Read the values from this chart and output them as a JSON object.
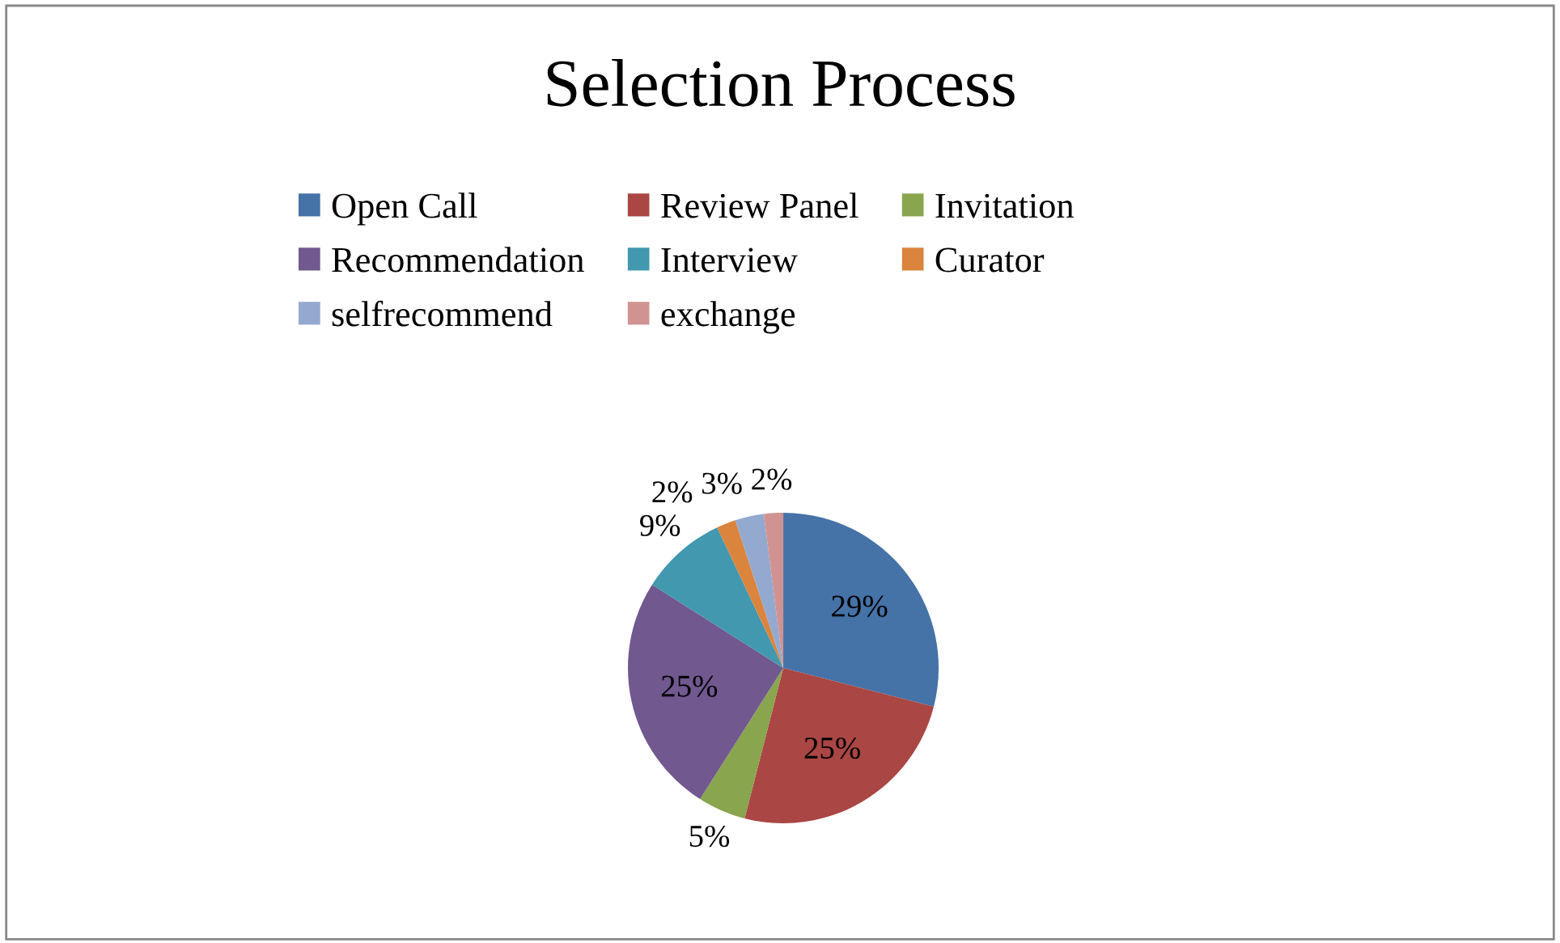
{
  "chart_data": {
    "type": "pie",
    "title": "Selection Process",
    "categories": [
      "Open Call",
      "Review Panel",
      "Invitation",
      "Recommendation",
      "Interview",
      "Curator",
      "selfrecommend",
      "exchange"
    ],
    "values": [
      29,
      25,
      5,
      25,
      9,
      2,
      3,
      2
    ],
    "colors": [
      "#4572a7",
      "#aa4643",
      "#89a54e",
      "#71588f",
      "#4198af",
      "#db843d",
      "#93a9cf",
      "#d19392"
    ],
    "value_labels": [
      "29%",
      "25%",
      "5%",
      "25%",
      "9%",
      "2%",
      "3%",
      "2%"
    ],
    "legend": "top"
  }
}
